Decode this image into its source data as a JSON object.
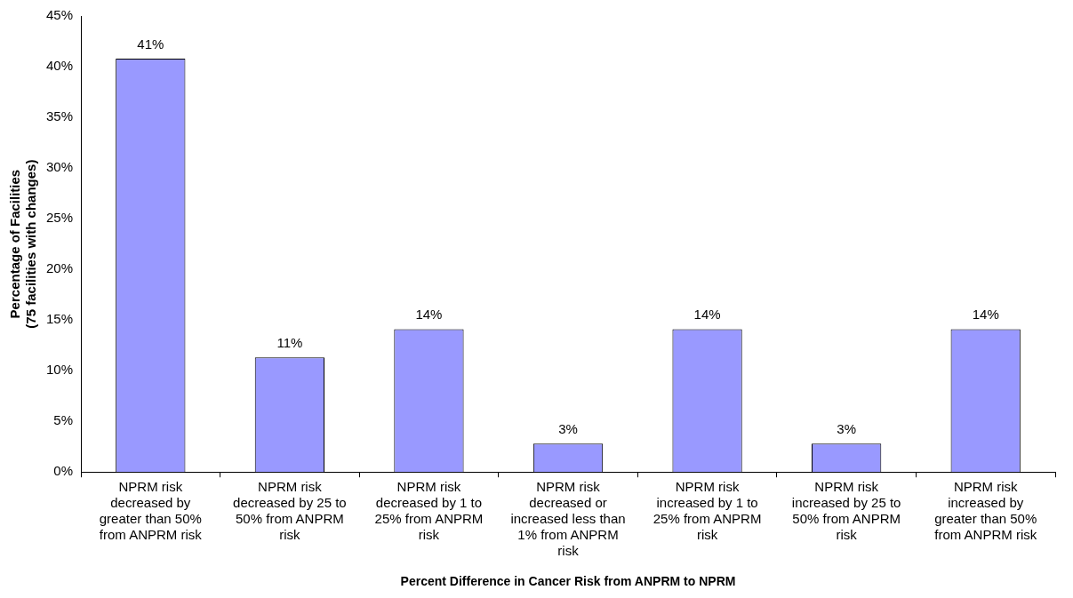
{
  "chart_data": {
    "type": "bar",
    "xlabel": "Percent Difference in Cancer Risk from ANPRM to NPRM",
    "ylabel": "Percentage of Facilities\n(75 facilities with changes)",
    "categories": [
      "NPRM risk decreased by greater than 50% from ANPRM risk",
      "NPRM risk decreased by 25 to 50% from ANPRM risk",
      "NPRM risk decreased by 1 to 25% from ANPRM risk",
      "NPRM risk decreased or increased less than 1% from ANPRM risk",
      "NPRM risk increased by 1 to 25% from ANPRM risk",
      "NPRM risk increased by 25 to 50% from ANPRM risk",
      "NPRM risk increased by greater than 50% from ANPRM risk"
    ],
    "values": [
      40.8,
      11.3,
      14.1,
      2.8,
      14.1,
      2.8,
      14.1
    ],
    "value_labels": [
      "41%",
      "11%",
      "14%",
      "3%",
      "14%",
      "3%",
      "14%"
    ],
    "color": "#9999ff",
    "ylim": [
      0,
      45
    ],
    "yticks": [
      {
        "value": 0,
        "label": "0%"
      },
      {
        "value": 5,
        "label": "5%"
      },
      {
        "value": 10,
        "label": "10%"
      },
      {
        "value": 15,
        "label": "15%"
      },
      {
        "value": 20,
        "label": "20%"
      },
      {
        "value": 25,
        "label": "25%"
      },
      {
        "value": 30,
        "label": "30%"
      },
      {
        "value": 35,
        "label": "35%"
      },
      {
        "value": 40,
        "label": "40%"
      },
      {
        "value": 45,
        "label": "45%"
      }
    ],
    "grid": false,
    "legend": false
  }
}
